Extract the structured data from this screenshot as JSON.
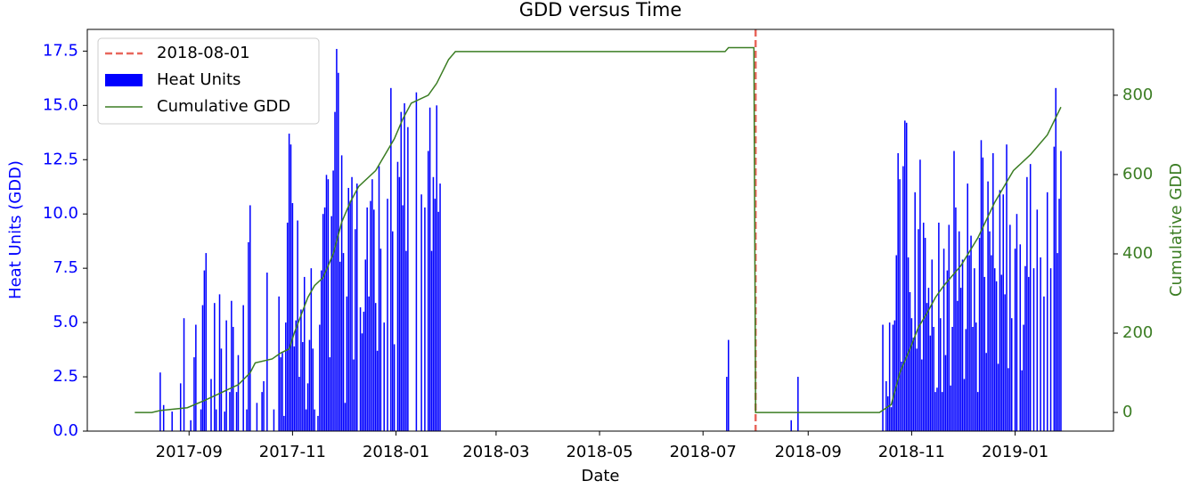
{
  "chart_data": {
    "type": "bar",
    "title": "GDD versus Time",
    "x_label": "Date",
    "y_label": "Heat Units (GDD)",
    "y2_label": "Cumulative GDD",
    "y_label_color": "#0000ff",
    "y2_label_color": "#3b7d23",
    "xlim": [
      "2017-07-03",
      "2019-02-28"
    ],
    "xticks": [
      "2017-09",
      "2017-11",
      "2018-01",
      "2018-03",
      "2018-05",
      "2018-07",
      "2018-09",
      "2018-11",
      "2019-01"
    ],
    "ylim": [
      0,
      18.5
    ],
    "yticks": [
      {
        "value": 0,
        "label": "0.0"
      },
      2.5,
      {
        "value": 5,
        "label": "5.0"
      },
      7.5,
      {
        "value": 10,
        "label": "10.0"
      },
      12.5,
      {
        "value": 15,
        "label": "15.0"
      },
      17.5
    ],
    "y2lim": [
      -47,
      966
    ],
    "y2ticks": [
      0,
      200,
      400,
      600,
      800
    ],
    "legend": "upper left",
    "series": [
      {
        "name": "2018-08-01",
        "type": "vline",
        "color": "#e8675c",
        "x": "2018-08-01"
      },
      {
        "name": "Heat Units",
        "type": "bar",
        "color": "#0000ff",
        "x": [
          "2017-08-15",
          "2017-08-17",
          "2017-08-22",
          "2017-08-27",
          "2017-08-29",
          "2017-09-02",
          "2017-09-04",
          "2017-09-05",
          "2017-09-08",
          "2017-09-09",
          "2017-09-10",
          "2017-09-11",
          "2017-09-14",
          "2017-09-16",
          "2017-09-17",
          "2017-09-19",
          "2017-09-20",
          "2017-09-22",
          "2017-09-23",
          "2017-09-25",
          "2017-09-26",
          "2017-09-27",
          "2017-09-29",
          "2017-09-30",
          "2017-10-03",
          "2017-10-05",
          "2017-10-06",
          "2017-10-07",
          "2017-10-11",
          "2017-10-14",
          "2017-10-15",
          "2017-10-17",
          "2017-10-21",
          "2017-10-24",
          "2017-10-25",
          "2017-10-26",
          "2017-10-27",
          "2017-10-28",
          "2017-10-29",
          "2017-10-30",
          "2017-10-31",
          "2017-11-01",
          "2017-11-02",
          "2017-11-03",
          "2017-11-04",
          "2017-11-05",
          "2017-11-06",
          "2017-11-07",
          "2017-11-08",
          "2017-11-09",
          "2017-11-10",
          "2017-11-11",
          "2017-11-12",
          "2017-11-13",
          "2017-11-14",
          "2017-11-16",
          "2017-11-17",
          "2017-11-18",
          "2017-11-19",
          "2017-11-20",
          "2017-11-21",
          "2017-11-22",
          "2017-11-23",
          "2017-11-24",
          "2017-11-25",
          "2017-11-26",
          "2017-11-27",
          "2017-11-28",
          "2017-11-29",
          "2017-11-30",
          "2017-12-01",
          "2017-12-02",
          "2017-12-03",
          "2017-12-04",
          "2017-12-05",
          "2017-12-06",
          "2017-12-07",
          "2017-12-08",
          "2017-12-09",
          "2017-12-11",
          "2017-12-12",
          "2017-12-13",
          "2017-12-14",
          "2017-12-15",
          "2017-12-16",
          "2017-12-17",
          "2017-12-18",
          "2017-12-19",
          "2017-12-20",
          "2017-12-21",
          "2017-12-22",
          "2017-12-23",
          "2017-12-25",
          "2017-12-27",
          "2017-12-29",
          "2017-12-30",
          "2017-12-31",
          "2018-01-02",
          "2018-01-03",
          "2018-01-04",
          "2018-01-05",
          "2018-01-06",
          "2018-01-07",
          "2018-01-08",
          "2018-01-13",
          "2018-01-16",
          "2018-01-18",
          "2018-01-20",
          "2018-01-21",
          "2018-01-22",
          "2018-01-23",
          "2018-01-24",
          "2018-01-25",
          "2018-01-26",
          "2018-01-27",
          "2018-07-15",
          "2018-07-16",
          "2018-08-22",
          "2018-08-26",
          "2018-10-15",
          "2018-10-17",
          "2018-10-18",
          "2018-10-19",
          "2018-10-20",
          "2018-10-21",
          "2018-10-22",
          "2018-10-23",
          "2018-10-24",
          "2018-10-25",
          "2018-10-26",
          "2018-10-27",
          "2018-10-28",
          "2018-10-29",
          "2018-10-30",
          "2018-10-31",
          "2018-11-01",
          "2018-11-02",
          "2018-11-03",
          "2018-11-04",
          "2018-11-05",
          "2018-11-06",
          "2018-11-07",
          "2018-11-08",
          "2018-11-09",
          "2018-11-10",
          "2018-11-11",
          "2018-11-12",
          "2018-11-13",
          "2018-11-14",
          "2018-11-15",
          "2018-11-16",
          "2018-11-17",
          "2018-11-18",
          "2018-11-19",
          "2018-11-20",
          "2018-11-21",
          "2018-11-22",
          "2018-11-23",
          "2018-11-24",
          "2018-11-25",
          "2018-11-26",
          "2018-11-27",
          "2018-11-28",
          "2018-11-29",
          "2018-11-30",
          "2018-12-01",
          "2018-12-02",
          "2018-12-03",
          "2018-12-04",
          "2018-12-05",
          "2018-12-06",
          "2018-12-07",
          "2018-12-08",
          "2018-12-09",
          "2018-12-10",
          "2018-12-11",
          "2018-12-12",
          "2018-12-13",
          "2018-12-14",
          "2018-12-15",
          "2018-12-16",
          "2018-12-17",
          "2018-12-18",
          "2018-12-19",
          "2018-12-20",
          "2018-12-21",
          "2018-12-22",
          "2018-12-23",
          "2018-12-24",
          "2018-12-25",
          "2018-12-26",
          "2018-12-27",
          "2018-12-28",
          "2018-12-29",
          "2018-12-30",
          "2019-01-01",
          "2019-01-02",
          "2019-01-04",
          "2019-01-05",
          "2019-01-06",
          "2019-01-07",
          "2019-01-08",
          "2019-01-09",
          "2019-01-10",
          "2019-01-12",
          "2019-01-14",
          "2019-01-16",
          "2019-01-18",
          "2019-01-20",
          "2019-01-22",
          "2019-01-24",
          "2019-01-25",
          "2019-01-26",
          "2019-01-27",
          "2019-01-28"
        ],
        "values": [
          2.7,
          1.2,
          0.9,
          2.2,
          5.2,
          0.5,
          3.4,
          4.9,
          1.0,
          5.8,
          7.4,
          8.2,
          2.4,
          5.9,
          1.0,
          6.3,
          3.8,
          0.9,
          5.1,
          1.8,
          6.0,
          4.8,
          1.8,
          3.5,
          5.8,
          1.0,
          8.7,
          10.4,
          1.3,
          1.8,
          2.3,
          7.3,
          1.0,
          6.2,
          3.4,
          3.6,
          0.7,
          5.0,
          9.6,
          13.7,
          13.2,
          10.5,
          3.9,
          5.1,
          9.7,
          2.5,
          5.6,
          4.1,
          7.1,
          1.0,
          2.2,
          4.2,
          7.5,
          3.8,
          1.0,
          0.7,
          4.9,
          7.4,
          10.0,
          10.3,
          11.8,
          11.6,
          3.4,
          9.9,
          12.0,
          14.7,
          17.6,
          16.5,
          7.8,
          12.7,
          8.2,
          1.3,
          6.2,
          11.2,
          10.6,
          11.7,
          3.3,
          9.3,
          11.4,
          5.7,
          4.5,
          5.5,
          7.9,
          10.3,
          6.2,
          10.6,
          11.6,
          10.2,
          5.9,
          3.7,
          12.2,
          8.4,
          5.0,
          10.7,
          15.8,
          9.2,
          4.0,
          12.4,
          11.7,
          14.7,
          10.4,
          15.1,
          8.3,
          14.0,
          15.6,
          10.9,
          10.3,
          12.9,
          14.9,
          8.3,
          11.7,
          10.7,
          15.0,
          10.1,
          11.4,
          2.5,
          4.2,
          0.5,
          2.5,
          4.9,
          2.3,
          1.6,
          5.0,
          1.1,
          4.9,
          5.1,
          8.1,
          12.8,
          11.6,
          3.2,
          12.2,
          14.3,
          14.2,
          8.0,
          6.4,
          5.2,
          4.3,
          11.0,
          3.8,
          9.3,
          12.5,
          3.3,
          9.6,
          8.9,
          5.9,
          6.6,
          4.4,
          7.9,
          4.8,
          1.8,
          2.0,
          9.6,
          5.2,
          1.8,
          8.4,
          3.5,
          7.4,
          9.5,
          2.1,
          4.8,
          12.9,
          10.3,
          6.0,
          9.2,
          6.6,
          7.9,
          2.4,
          4.7,
          11.4,
          8.1,
          9.0,
          4.8,
          7.5,
          5.0,
          1.8,
          8.9,
          13.4,
          12.6,
          7.1,
          3.6,
          11.5,
          9.2,
          8.1,
          12.8,
          7.5,
          6.9,
          3.1,
          11.1,
          7.2,
          10.9,
          6.3,
          13.2,
          2.9,
          9.5,
          5.2,
          8.4,
          10.0,
          8.6,
          2.8,
          4.9,
          7.6,
          11.7,
          7.1,
          12.3,
          7.5,
          10.2,
          8.0,
          6.2,
          11.0,
          7.5,
          13.1,
          15.8,
          8.2,
          10.7,
          12.9
        ]
      },
      {
        "name": "Cumulative GDD",
        "type": "line",
        "axis": "y2",
        "color": "#3b7d23",
        "x": [
          "2017-07-31",
          "2017-08-10",
          "2017-08-15",
          "2017-08-31",
          "2017-09-10",
          "2017-09-20",
          "2017-09-30",
          "2017-10-07",
          "2017-10-10",
          "2017-10-20",
          "2017-10-25",
          "2017-10-30",
          "2017-11-02",
          "2017-11-06",
          "2017-11-10",
          "2017-11-14",
          "2017-11-19",
          "2017-11-25",
          "2017-11-30",
          "2017-12-05",
          "2017-12-10",
          "2017-12-20",
          "2017-12-31",
          "2018-01-05",
          "2018-01-10",
          "2018-01-20",
          "2018-01-25",
          "2018-02-01",
          "2018-02-05",
          "2018-07-14",
          "2018-07-16",
          "2018-07-31",
          "2018-08-01",
          "2018-10-13",
          "2018-10-20",
          "2018-10-25",
          "2018-10-31",
          "2018-11-05",
          "2018-11-10",
          "2018-11-15",
          "2018-11-20",
          "2018-11-30",
          "2018-12-10",
          "2018-12-20",
          "2018-12-31",
          "2019-01-10",
          "2019-01-20",
          "2019-01-28"
        ],
        "values": [
          0,
          0,
          5,
          12,
          30,
          50,
          70,
          100,
          125,
          135,
          150,
          160,
          200,
          245,
          290,
          320,
          340,
          400,
          480,
          530,
          570,
          610,
          690,
          740,
          780,
          800,
          830,
          890,
          910,
          910,
          920,
          920,
          0,
          0,
          20,
          100,
          160,
          215,
          250,
          290,
          320,
          370,
          440,
          530,
          610,
          650,
          700,
          770
        ]
      }
    ]
  }
}
